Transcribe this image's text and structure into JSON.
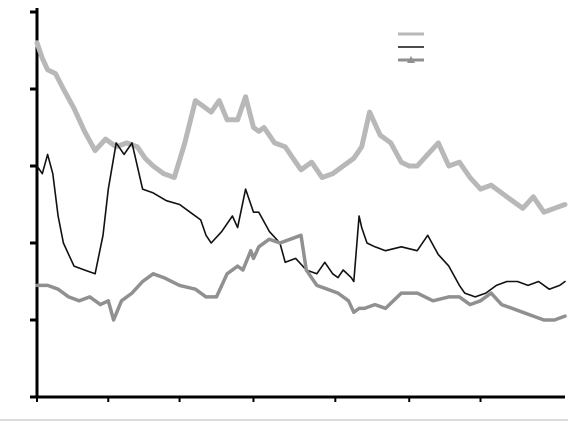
{
  "chart_data": {
    "type": "line",
    "title": "",
    "xlabel": "",
    "ylabel": "",
    "ylim": [
      0,
      5
    ],
    "y_ticks": [
      0,
      1,
      2,
      3,
      4,
      5
    ],
    "x_range": [
      0,
      1
    ],
    "x_ticks": [
      {
        "pos": 0.0,
        "label": ""
      },
      {
        "pos": 0.135,
        "label": ""
      },
      {
        "pos": 0.27,
        "label": ""
      },
      {
        "pos": 0.41,
        "label": ""
      },
      {
        "pos": 0.565,
        "label": ""
      },
      {
        "pos": 0.705,
        "label": ""
      },
      {
        "pos": 0.84,
        "label": ""
      }
    ],
    "grid": false,
    "legend": "top-right",
    "series": [
      {
        "name": "",
        "color": "#b8b8b8",
        "marker": "none",
        "width": 5,
        "x": [
          0.0,
          0.01,
          0.02,
          0.035,
          0.05,
          0.07,
          0.09,
          0.11,
          0.13,
          0.15,
          0.17,
          0.19,
          0.205,
          0.22,
          0.24,
          0.26,
          0.28,
          0.3,
          0.31,
          0.33,
          0.345,
          0.36,
          0.38,
          0.395,
          0.41,
          0.42,
          0.43,
          0.45,
          0.47,
          0.49,
          0.5,
          0.52,
          0.54,
          0.56,
          0.58,
          0.6,
          0.615,
          0.63,
          0.65,
          0.67,
          0.69,
          0.705,
          0.72,
          0.74,
          0.76,
          0.78,
          0.8,
          0.82,
          0.84,
          0.86,
          0.88,
          0.9,
          0.92,
          0.94,
          0.96,
          0.98,
          1.0
        ],
        "y": [
          4.6,
          4.4,
          4.25,
          4.2,
          4.0,
          3.75,
          3.45,
          3.2,
          3.35,
          3.25,
          3.3,
          3.25,
          3.1,
          3.0,
          2.9,
          2.85,
          3.3,
          3.85,
          3.8,
          3.7,
          3.85,
          3.6,
          3.6,
          3.9,
          3.5,
          3.45,
          3.5,
          3.3,
          3.25,
          3.05,
          2.95,
          3.05,
          2.85,
          2.9,
          3.0,
          3.1,
          3.25,
          3.7,
          3.4,
          3.3,
          3.05,
          3.0,
          3.0,
          3.15,
          3.3,
          3.0,
          3.05,
          2.85,
          2.7,
          2.75,
          2.65,
          2.55,
          2.45,
          2.6,
          2.4,
          2.45,
          2.5
        ]
      },
      {
        "name": "",
        "color": "#111111",
        "marker": "none",
        "width": 1.6,
        "x": [
          0.0,
          0.01,
          0.02,
          0.03,
          0.04,
          0.05,
          0.06,
          0.07,
          0.09,
          0.11,
          0.125,
          0.135,
          0.15,
          0.165,
          0.18,
          0.2,
          0.22,
          0.245,
          0.27,
          0.29,
          0.31,
          0.32,
          0.33,
          0.35,
          0.37,
          0.38,
          0.395,
          0.41,
          0.42,
          0.44,
          0.46,
          0.47,
          0.49,
          0.51,
          0.53,
          0.545,
          0.56,
          0.57,
          0.58,
          0.595,
          0.6,
          0.61,
          0.615,
          0.625,
          0.64,
          0.66,
          0.69,
          0.72,
          0.74,
          0.76,
          0.78,
          0.8,
          0.81,
          0.83,
          0.85,
          0.87,
          0.89,
          0.91,
          0.93,
          0.95,
          0.97,
          0.99,
          1.0
        ],
        "y": [
          3.0,
          2.9,
          3.15,
          2.9,
          2.35,
          2.0,
          1.85,
          1.7,
          1.65,
          1.6,
          2.1,
          2.7,
          3.3,
          3.15,
          3.3,
          2.7,
          2.65,
          2.55,
          2.5,
          2.4,
          2.3,
          2.1,
          2.0,
          2.15,
          2.35,
          2.2,
          2.7,
          2.4,
          2.4,
          2.15,
          2.0,
          1.75,
          1.8,
          1.65,
          1.6,
          1.75,
          1.6,
          1.55,
          1.65,
          1.55,
          1.5,
          2.35,
          2.2,
          2.0,
          1.95,
          1.9,
          1.95,
          1.9,
          2.1,
          1.85,
          1.7,
          1.45,
          1.35,
          1.3,
          1.35,
          1.45,
          1.5,
          1.5,
          1.45,
          1.5,
          1.4,
          1.45,
          1.5
        ]
      },
      {
        "name": "",
        "color": "#909090",
        "marker": "triangle",
        "width": 3.5,
        "x": [
          0.0,
          0.02,
          0.04,
          0.06,
          0.08,
          0.1,
          0.12,
          0.135,
          0.145,
          0.16,
          0.18,
          0.2,
          0.22,
          0.24,
          0.27,
          0.3,
          0.32,
          0.34,
          0.36,
          0.38,
          0.39,
          0.405,
          0.41,
          0.42,
          0.44,
          0.46,
          0.48,
          0.5,
          0.51,
          0.53,
          0.55,
          0.57,
          0.59,
          0.6,
          0.61,
          0.62,
          0.64,
          0.66,
          0.69,
          0.72,
          0.75,
          0.78,
          0.8,
          0.82,
          0.84,
          0.86,
          0.88,
          0.9,
          0.92,
          0.94,
          0.96,
          0.98,
          1.0
        ],
        "y": [
          1.45,
          1.45,
          1.4,
          1.3,
          1.25,
          1.3,
          1.2,
          1.25,
          1.0,
          1.25,
          1.35,
          1.5,
          1.6,
          1.55,
          1.45,
          1.4,
          1.3,
          1.3,
          1.6,
          1.7,
          1.65,
          1.9,
          1.8,
          1.95,
          2.05,
          2.0,
          2.05,
          2.1,
          1.65,
          1.45,
          1.4,
          1.35,
          1.25,
          1.1,
          1.15,
          1.15,
          1.2,
          1.15,
          1.35,
          1.35,
          1.25,
          1.3,
          1.3,
          1.2,
          1.25,
          1.35,
          1.2,
          1.15,
          1.1,
          1.05,
          1.0,
          1.0,
          1.05
        ]
      }
    ]
  }
}
